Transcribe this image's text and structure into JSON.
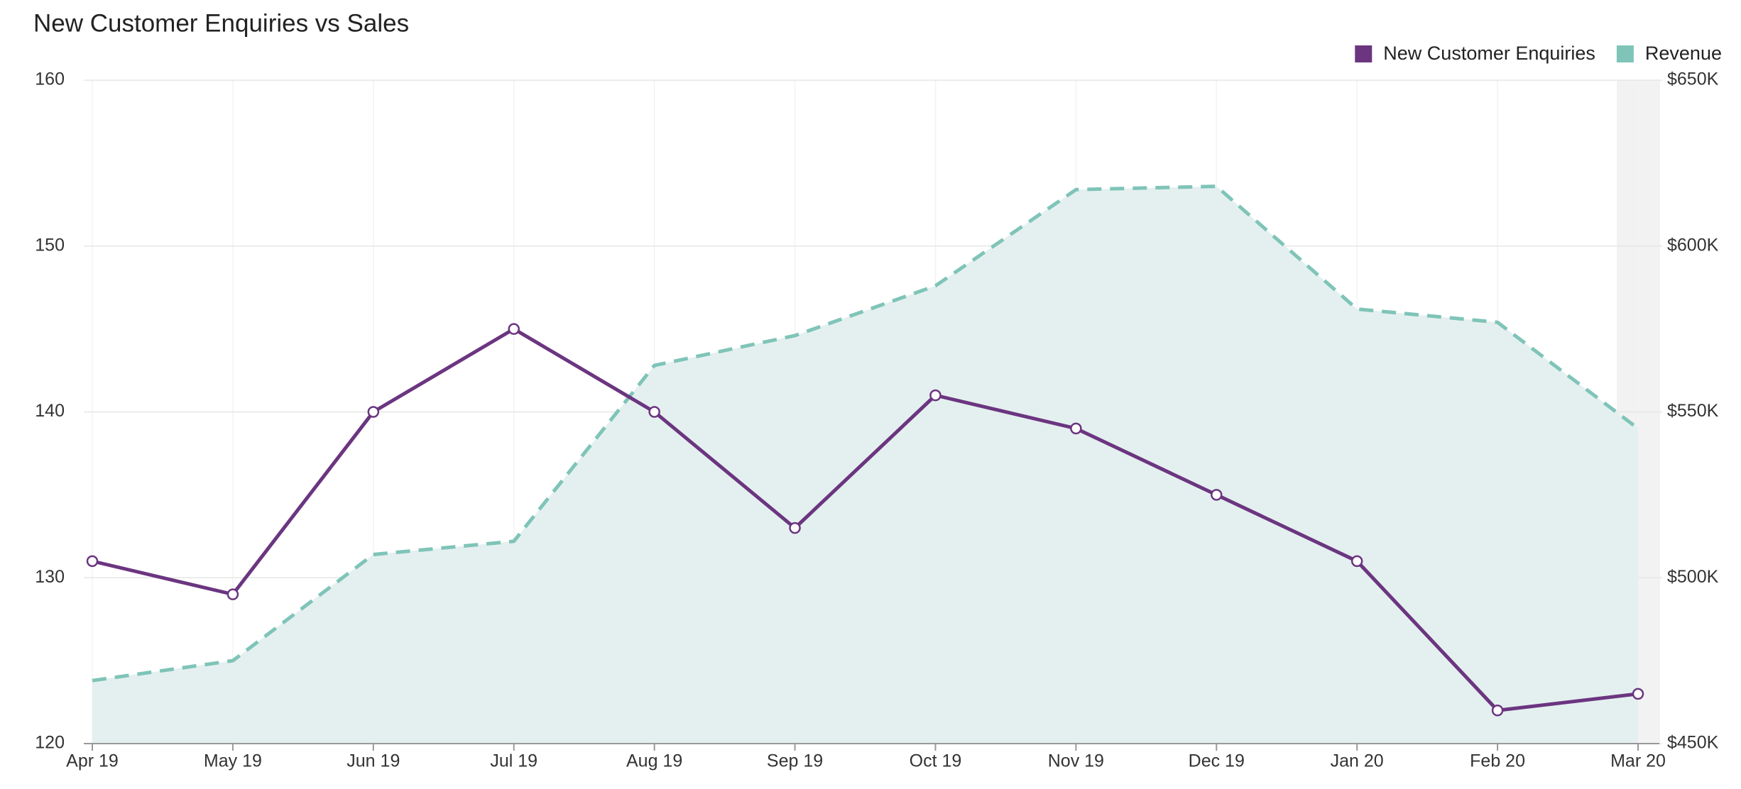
{
  "chart_data": {
    "type": "line",
    "title": "New Customer Enquiries vs Sales",
    "categories": [
      "Apr 19",
      "May 19",
      "Jun 19",
      "Jul 19",
      "Aug 19",
      "Sep 19",
      "Oct 19",
      "Nov 19",
      "Dec 19",
      "Jan 20",
      "Feb 20",
      "Mar 20"
    ],
    "series": [
      {
        "name": "New Customer Enquiries",
        "color": "#6b3580",
        "axis": "y",
        "values": [
          131,
          129,
          140,
          145,
          140,
          133,
          141,
          139,
          135,
          131,
          122,
          123
        ]
      },
      {
        "name": "Revenue",
        "color": "#7fc4b8",
        "axis": "y2",
        "area_color": "#e4f0ef",
        "dashed": true,
        "values": [
          469000,
          475000,
          507000,
          511000,
          564000,
          573000,
          588000,
          617000,
          618000,
          581000,
          577000,
          545000
        ]
      }
    ],
    "ylim": [
      120,
      160
    ],
    "yticks": [
      120,
      130,
      140,
      150,
      160
    ],
    "y2lim": [
      450000,
      650000
    ],
    "y2ticks": [
      {
        "value": 450000,
        "label": "$450K"
      },
      {
        "value": 500000,
        "label": "$500K"
      },
      {
        "value": 550000,
        "label": "$550K"
      },
      {
        "value": 600000,
        "label": "$600K"
      },
      {
        "value": 650000,
        "label": "$650K"
      }
    ],
    "grid": true,
    "legend": "top-right"
  }
}
